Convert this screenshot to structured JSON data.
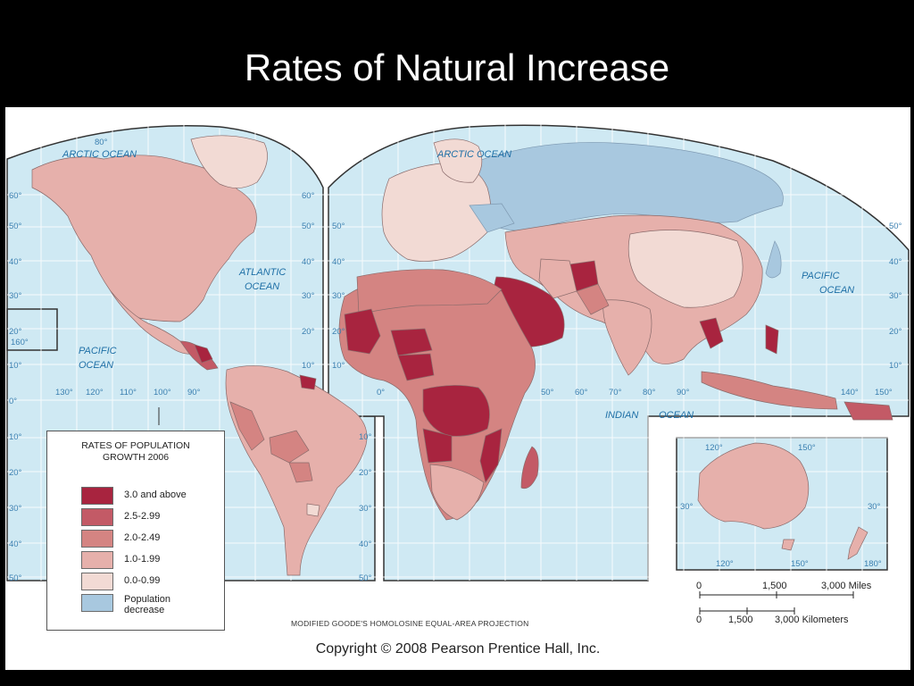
{
  "slide": {
    "title": "Rates of Natural Increase"
  },
  "legend": {
    "title": "RATES OF POPULATION GROWTH 2006",
    "title_line1": "RATES OF POPULATION",
    "title_line2": "GROWTH 2006",
    "items": [
      {
        "label": "3.0 and above",
        "color": "#a8243f"
      },
      {
        "label": "2.5-2.99",
        "color": "#c35a66"
      },
      {
        "label": "2.0-2.49",
        "color": "#d48482"
      },
      {
        "label": "1.0-1.99",
        "color": "#e6b0ab"
      },
      {
        "label": "0.0-0.99",
        "color": "#f2dad4"
      },
      {
        "label": "Population decrease",
        "label_line1": "Population",
        "label_line2": "decrease",
        "color": "#a8c8df"
      }
    ]
  },
  "map": {
    "ocean_color": "#cfe9f3",
    "ocean_labels": {
      "arctic_west": "ARCTIC OCEAN",
      "arctic_east": "ARCTIC OCEAN",
      "atlantic": "ATLANTIC OCEAN",
      "atlantic_l1": "ATLANTIC",
      "atlantic_l2": "OCEAN",
      "pacific_west_l1": "PACIFIC",
      "pacific_west_l2": "OCEAN",
      "pacific_east_l1": "PACIFIC",
      "pacific_east_l2": "OCEAN",
      "indian_l1": "INDIAN",
      "indian_l2": "OCEAN"
    },
    "lat_labels_left": [
      "60°",
      "50°",
      "40°",
      "30°",
      "20°",
      "10°",
      "0°",
      "10°",
      "20°",
      "30°",
      "40°",
      "50°"
    ],
    "lat_labels_mid": [
      "60°",
      "50°",
      "40°",
      "30°",
      "20°",
      "10°",
      "10°",
      "20°",
      "30°",
      "40°",
      "50°"
    ],
    "lat_labels_asia_left": [
      "50°",
      "40°",
      "30°",
      "20°",
      "10°"
    ],
    "lat_labels_right": [
      "50°",
      "40°",
      "30°",
      "20°",
      "10°"
    ],
    "lat_labels_south_mid": [
      "10°",
      "20°",
      "30°",
      "40°",
      "50°"
    ],
    "lon_labels_americas": [
      "130°",
      "120°",
      "110°",
      "100°",
      "90°"
    ],
    "lon_labels_eurasia": [
      "0°",
      "50°",
      "60°",
      "70°",
      "80°",
      "90°",
      "140°",
      "150°"
    ],
    "misc_labels": {
      "north_80": "80°",
      "east_80": "80°",
      "lon_160": "160°",
      "lat_30_south": "30°"
    },
    "australia_inset_labels": [
      "120°",
      "150°",
      "30°",
      "30°",
      "120°",
      "150°",
      "180°"
    ]
  },
  "projection": "MODIFIED GOODE'S HOMOLOSINE EQUAL-AREA PROJECTION",
  "scale": {
    "miles": [
      "0",
      "1,500",
      "3,000 Miles"
    ],
    "kilometers": [
      "0",
      "1,500",
      "3,000 Kilometers"
    ]
  },
  "copyright": "Copyright © 2008 Pearson Prentice Hall, Inc."
}
